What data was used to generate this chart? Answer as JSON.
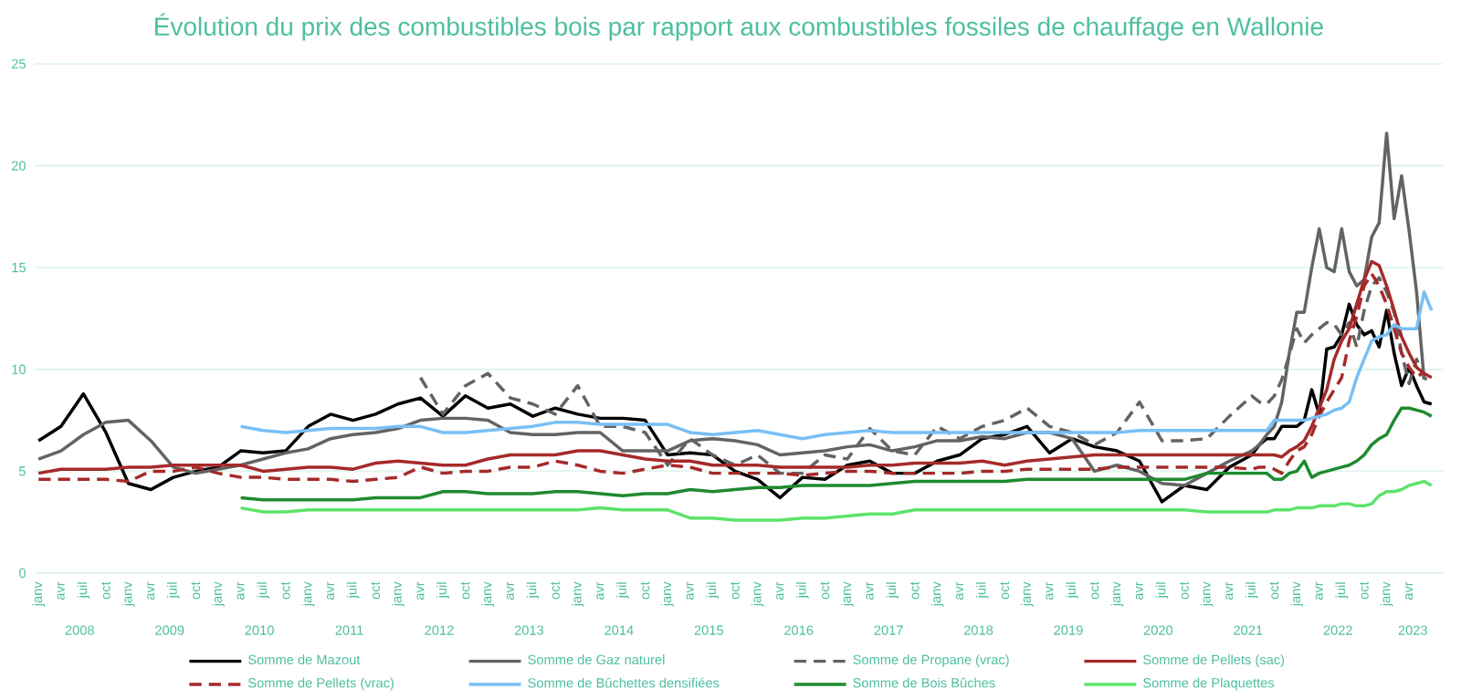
{
  "chart_data": {
    "type": "line",
    "title": "Évolution du prix des combustibles bois par rapport aux combustibles fossiles de chauffage en Wallonie",
    "x": [
      "2008-01",
      "2008-04",
      "2008-07",
      "2008-10",
      "2009-01",
      "2009-04",
      "2009-07",
      "2009-10",
      "2010-01",
      "2010-04",
      "2010-07",
      "2010-10",
      "2011-01",
      "2011-04",
      "2011-07",
      "2011-10",
      "2012-01",
      "2012-04",
      "2012-07",
      "2012-10",
      "2013-01",
      "2013-04",
      "2013-07",
      "2013-10",
      "2014-01",
      "2014-04",
      "2014-07",
      "2014-10",
      "2015-01",
      "2015-04",
      "2015-07",
      "2015-10",
      "2016-01",
      "2016-04",
      "2016-07",
      "2016-10",
      "2017-01",
      "2017-04",
      "2017-07",
      "2017-10",
      "2018-01",
      "2018-04",
      "2018-07",
      "2018-10",
      "2019-01",
      "2019-04",
      "2019-07",
      "2019-10",
      "2020-01",
      "2020-04",
      "2020-07",
      "2020-10",
      "2021-01",
      "2021-04",
      "2021-07",
      "2021-08",
      "2021-09",
      "2021-10",
      "2021-11",
      "2021-12",
      "2022-01",
      "2022-02",
      "2022-03",
      "2022-04",
      "2022-05",
      "2022-06",
      "2022-07",
      "2022-08",
      "2022-09",
      "2022-10",
      "2022-11",
      "2022-12",
      "2023-01",
      "2023-02",
      "2023-03",
      "2023-04",
      "2023-05",
      "2023-06",
      "2023-07"
    ],
    "series": [
      {
        "name": "Somme de Mazout",
        "color": "#000000",
        "values": [
          6.5,
          7.2,
          8.8,
          6.9,
          4.4,
          4.1,
          4.7,
          5.0,
          5.2,
          6.0,
          5.9,
          6.0,
          7.2,
          7.8,
          7.5,
          7.8,
          8.3,
          8.6,
          7.7,
          8.7,
          8.1,
          8.3,
          7.7,
          8.1,
          7.8,
          7.6,
          7.6,
          7.5,
          5.8,
          5.9,
          5.8,
          5.0,
          4.6,
          3.7,
          4.7,
          4.6,
          5.3,
          5.5,
          4.9,
          4.9,
          5.5,
          5.8,
          6.6,
          6.8,
          7.2,
          5.9,
          6.6,
          6.2,
          6.0,
          5.5,
          3.5,
          4.3,
          4.1,
          5.2,
          5.8,
          6.3,
          6.6,
          6.6,
          7.2,
          7.2,
          7.2,
          7.5,
          9.0,
          7.8,
          11.0,
          11.1,
          11.7,
          13.2,
          12.2,
          11.7,
          11.9,
          11.1,
          12.9,
          10.8,
          9.2,
          10.1,
          9.2,
          8.4,
          8.3
        ]
      },
      {
        "name": "Somme de Gaz naturel",
        "color": "#636363",
        "values": [
          5.6,
          6.0,
          6.8,
          7.4,
          7.5,
          6.5,
          5.2,
          4.9,
          5.1,
          5.3,
          5.6,
          5.9,
          6.1,
          6.6,
          6.8,
          6.9,
          7.1,
          7.5,
          7.6,
          7.6,
          7.5,
          6.9,
          6.8,
          6.8,
          6.9,
          6.9,
          6.0,
          6.0,
          6.0,
          6.5,
          6.6,
          6.5,
          6.3,
          5.8,
          5.9,
          6.0,
          6.2,
          6.3,
          6.0,
          6.2,
          6.5,
          6.5,
          6.7,
          6.6,
          6.9,
          6.9,
          6.6,
          5.0,
          5.3,
          5.0,
          4.4,
          4.3,
          4.9,
          5.5,
          6.0,
          6.3,
          6.8,
          7.2,
          8.4,
          10.8,
          12.8,
          12.8,
          15.0,
          16.9,
          15.0,
          14.8,
          16.9,
          14.8,
          14.1,
          14.4,
          16.5,
          17.2,
          21.6,
          17.4,
          19.5,
          16.8,
          13.8,
          9.5,
          null
        ]
      },
      {
        "name": "Somme de Propane (vrac)",
        "color": "#636363",
        "line_style": "dashed",
        "values": [
          null,
          null,
          null,
          null,
          null,
          null,
          null,
          null,
          null,
          null,
          null,
          null,
          null,
          null,
          null,
          null,
          null,
          9.6,
          7.8,
          9.2,
          9.8,
          8.6,
          8.3,
          7.8,
          9.2,
          7.2,
          7.2,
          6.9,
          5.3,
          6.6,
          5.8,
          5.3,
          5.8,
          4.9,
          4.9,
          5.8,
          5.6,
          7.1,
          6.0,
          5.8,
          7.2,
          6.6,
          7.2,
          7.5,
          8.1,
          7.2,
          6.9,
          6.3,
          6.9,
          8.4,
          6.5,
          6.5,
          6.6,
          7.7,
          8.7,
          8.4,
          8.3,
          8.7,
          9.5,
          10.7,
          12.0,
          11.3,
          11.7,
          12.0,
          12.3,
          12.2,
          11.7,
          12.3,
          11.1,
          12.9,
          14.1,
          14.5,
          13.8,
          12.8,
          10.8,
          9.3,
          10.5,
          9.6,
          9.3
        ]
      },
      {
        "name": "Somme de Pellets (sac)",
        "color": "#a52a2a",
        "values": [
          4.9,
          5.1,
          5.1,
          5.1,
          5.2,
          5.2,
          5.3,
          5.3,
          5.3,
          5.3,
          5.0,
          5.1,
          5.2,
          5.2,
          5.1,
          5.4,
          5.5,
          5.4,
          5.3,
          5.3,
          5.6,
          5.8,
          5.8,
          5.8,
          6.0,
          6.0,
          5.8,
          5.6,
          5.5,
          5.5,
          5.3,
          5.3,
          5.3,
          5.2,
          5.2,
          5.2,
          5.2,
          5.3,
          5.3,
          5.4,
          5.4,
          5.4,
          5.5,
          5.3,
          5.5,
          5.6,
          5.7,
          5.8,
          5.8,
          5.8,
          5.8,
          5.8,
          5.8,
          5.8,
          5.8,
          5.8,
          5.8,
          5.8,
          5.7,
          6.0,
          6.2,
          6.5,
          7.2,
          8.1,
          9.0,
          10.5,
          11.4,
          12.0,
          13.2,
          14.4,
          15.3,
          15.1,
          14.1,
          12.9,
          11.6,
          10.8,
          10.1,
          9.8,
          9.6
        ]
      },
      {
        "name": "Somme de Pellets (vrac)",
        "color": "#a52a2a",
        "line_style": "dashed",
        "values": [
          4.6,
          4.6,
          4.6,
          4.6,
          4.5,
          5.0,
          5.0,
          5.2,
          4.9,
          4.7,
          4.7,
          4.6,
          4.6,
          4.6,
          4.5,
          4.6,
          4.7,
          5.2,
          4.9,
          5.0,
          5.0,
          5.2,
          5.2,
          5.5,
          5.3,
          5.0,
          4.9,
          5.1,
          5.3,
          5.2,
          4.9,
          4.9,
          4.9,
          4.9,
          4.8,
          4.9,
          5.0,
          5.0,
          4.9,
          4.9,
          4.9,
          4.9,
          5.0,
          5.0,
          5.1,
          5.1,
          5.1,
          5.1,
          5.2,
          5.2,
          5.2,
          5.2,
          5.2,
          5.2,
          5.1,
          5.2,
          5.2,
          5.1,
          4.9,
          5.5,
          6.0,
          6.2,
          6.8,
          7.7,
          8.4,
          9.0,
          9.6,
          11.4,
          12.6,
          14.1,
          14.7,
          14.1,
          13.2,
          12.0,
          10.8,
          10.1,
          9.6,
          9.9,
          null
        ]
      },
      {
        "name": "Somme de Bûchettes densifiées",
        "color": "#78bff5",
        "values": [
          null,
          null,
          null,
          null,
          null,
          null,
          null,
          null,
          null,
          7.2,
          7.0,
          6.9,
          7.0,
          7.1,
          7.1,
          7.1,
          7.2,
          7.2,
          6.9,
          6.9,
          7.0,
          7.1,
          7.2,
          7.4,
          7.4,
          7.3,
          7.3,
          7.3,
          7.3,
          6.9,
          6.8,
          6.9,
          7.0,
          6.8,
          6.6,
          6.8,
          6.9,
          7.0,
          6.9,
          6.9,
          6.9,
          6.9,
          6.9,
          6.9,
          6.9,
          6.9,
          6.9,
          6.9,
          6.9,
          7.0,
          7.0,
          7.0,
          7.0,
          7.0,
          7.0,
          7.0,
          7.0,
          7.5,
          7.5,
          7.5,
          7.5,
          7.5,
          7.6,
          7.7,
          7.8,
          8.0,
          8.1,
          8.4,
          9.6,
          10.5,
          11.4,
          11.6,
          11.7,
          12.2,
          12.0,
          12.0,
          12.0,
          13.8,
          12.9
        ]
      },
      {
        "name": "Somme de Bois Bûches",
        "color": "#1e8a2e",
        "values": [
          null,
          null,
          null,
          null,
          null,
          null,
          null,
          null,
          null,
          3.7,
          3.6,
          3.6,
          3.6,
          3.6,
          3.6,
          3.7,
          3.7,
          3.7,
          4.0,
          4.0,
          3.9,
          3.9,
          3.9,
          4.0,
          4.0,
          3.9,
          3.8,
          3.9,
          3.9,
          4.1,
          4.0,
          4.1,
          4.2,
          4.2,
          4.3,
          4.3,
          4.3,
          4.3,
          4.4,
          4.5,
          4.5,
          4.5,
          4.5,
          4.5,
          4.6,
          4.6,
          4.6,
          4.6,
          4.6,
          4.6,
          4.6,
          4.6,
          4.9,
          4.9,
          4.9,
          4.9,
          4.9,
          4.6,
          4.6,
          4.9,
          5.0,
          5.5,
          4.7,
          4.9,
          5.0,
          5.1,
          5.2,
          5.3,
          5.5,
          5.8,
          6.3,
          6.6,
          6.8,
          7.5,
          8.1,
          8.1,
          8.0,
          7.9,
          7.7
        ]
      },
      {
        "name": "Somme de Plaquettes",
        "color": "#5de36b",
        "values": [
          null,
          null,
          null,
          null,
          null,
          null,
          null,
          null,
          null,
          3.2,
          3.0,
          3.0,
          3.1,
          3.1,
          3.1,
          3.1,
          3.1,
          3.1,
          3.1,
          3.1,
          3.1,
          3.1,
          3.1,
          3.1,
          3.1,
          3.2,
          3.1,
          3.1,
          3.1,
          2.7,
          2.7,
          2.6,
          2.6,
          2.6,
          2.7,
          2.7,
          2.8,
          2.9,
          2.9,
          3.1,
          3.1,
          3.1,
          3.1,
          3.1,
          3.1,
          3.1,
          3.1,
          3.1,
          3.1,
          3.1,
          3.1,
          3.1,
          3.0,
          3.0,
          3.0,
          3.0,
          3.0,
          3.1,
          3.1,
          3.1,
          3.2,
          3.2,
          3.2,
          3.3,
          3.3,
          3.3,
          3.4,
          3.4,
          3.3,
          3.3,
          3.4,
          3.8,
          4.0,
          4.0,
          4.1,
          4.3,
          4.4,
          4.5,
          4.3
        ]
      }
    ],
    "xlim": [
      "2007-12-16",
      "2023-08-16"
    ],
    "xticks": [
      {
        "value": "2008-01",
        "label": "janv"
      },
      {
        "value": "2008-04",
        "label": "avr"
      },
      {
        "value": "2008-07",
        "label": "juil"
      },
      {
        "value": "2008-10",
        "label": "oct"
      },
      {
        "value": "2009-01",
        "label": "janv"
      },
      {
        "value": "2009-04",
        "label": "avr"
      },
      {
        "value": "2009-07",
        "label": "juil"
      },
      {
        "value": "2009-10",
        "label": "oct"
      },
      {
        "value": "2010-01",
        "label": "janv"
      },
      {
        "value": "2010-04",
        "label": "avr"
      },
      {
        "value": "2010-07",
        "label": "juil"
      },
      {
        "value": "2010-10",
        "label": "oct"
      },
      {
        "value": "2011-01",
        "label": "janv"
      },
      {
        "value": "2011-04",
        "label": "avr"
      },
      {
        "value": "2011-07",
        "label": "juil"
      },
      {
        "value": "2011-10",
        "label": "oct"
      },
      {
        "value": "2012-01",
        "label": "janv"
      },
      {
        "value": "2012-04",
        "label": "avr"
      },
      {
        "value": "2012-07",
        "label": "juil"
      },
      {
        "value": "2012-10",
        "label": "oct"
      },
      {
        "value": "2013-01",
        "label": "janv"
      },
      {
        "value": "2013-04",
        "label": "avr"
      },
      {
        "value": "2013-07",
        "label": "juil"
      },
      {
        "value": "2013-10",
        "label": "oct"
      },
      {
        "value": "2014-01",
        "label": "janv"
      },
      {
        "value": "2014-04",
        "label": "avr"
      },
      {
        "value": "2014-07",
        "label": "juil"
      },
      {
        "value": "2014-10",
        "label": "oct"
      },
      {
        "value": "2015-01",
        "label": "janv"
      },
      {
        "value": "2015-04",
        "label": "avr"
      },
      {
        "value": "2015-07",
        "label": "juil"
      },
      {
        "value": "2015-10",
        "label": "oct"
      },
      {
        "value": "2016-01",
        "label": "janv"
      },
      {
        "value": "2016-04",
        "label": "avr"
      },
      {
        "value": "2016-07",
        "label": "juil"
      },
      {
        "value": "2016-10",
        "label": "oct"
      },
      {
        "value": "2017-01",
        "label": "janv"
      },
      {
        "value": "2017-04",
        "label": "avr"
      },
      {
        "value": "2017-07",
        "label": "juil"
      },
      {
        "value": "2017-10",
        "label": "oct"
      },
      {
        "value": "2018-01",
        "label": "janv"
      },
      {
        "value": "2018-04",
        "label": "avr"
      },
      {
        "value": "2018-07",
        "label": "juil"
      },
      {
        "value": "2018-10",
        "label": "oct"
      },
      {
        "value": "2019-01",
        "label": "janv"
      },
      {
        "value": "2019-04",
        "label": "avr"
      },
      {
        "value": "2019-07",
        "label": "juil"
      },
      {
        "value": "2019-10",
        "label": "oct"
      },
      {
        "value": "2020-01",
        "label": "janv"
      },
      {
        "value": "2020-04",
        "label": "avr"
      },
      {
        "value": "2020-07",
        "label": "juil"
      },
      {
        "value": "2020-10",
        "label": "oct"
      },
      {
        "value": "2021-01",
        "label": "janv"
      },
      {
        "value": "2021-04",
        "label": "avr"
      },
      {
        "value": "2021-07",
        "label": "juil"
      },
      {
        "value": "2021-10",
        "label": "oct"
      },
      {
        "value": "2022-01",
        "label": "janv"
      },
      {
        "value": "2022-04",
        "label": "avr"
      },
      {
        "value": "2022-07",
        "label": "juil"
      },
      {
        "value": "2022-10",
        "label": "oct"
      },
      {
        "value": "2023-01",
        "label": "janv"
      },
      {
        "value": "2023-04",
        "label": "avr"
      }
    ],
    "ylim": [
      0,
      25
    ],
    "yticks": [
      0,
      5,
      10,
      15,
      20,
      25
    ],
    "grid": "y",
    "legend": "bottom",
    "annotations": [
      "2008",
      "2009",
      "2010",
      "2011",
      "2012",
      "2013",
      "2014",
      "2015",
      "2016",
      "2017",
      "2018",
      "2019",
      "2020",
      "2021",
      "2022",
      "2023"
    ]
  }
}
